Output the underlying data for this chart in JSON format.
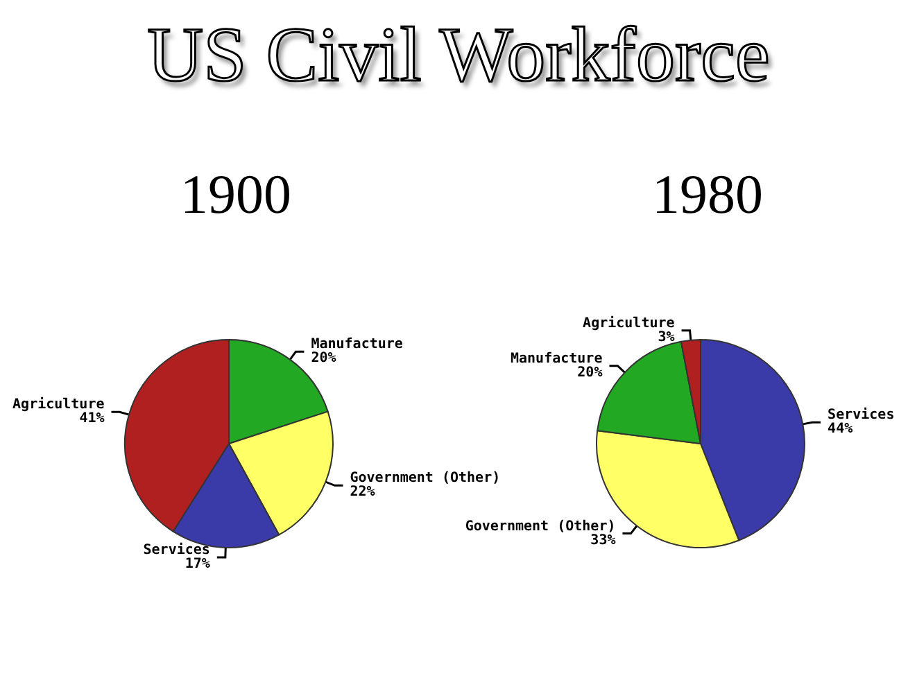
{
  "chart_data": [
    {
      "type": "pie",
      "title": "US Civil Workforce",
      "subtitle": "1900",
      "categories": [
        "Manufacture",
        "Government (Other)",
        "Services",
        "Agriculture"
      ],
      "values": [
        20,
        22,
        17,
        41
      ],
      "value_labels": [
        "20%",
        "22%",
        "17%",
        "41%"
      ],
      "colors": [
        "#22a822",
        "#ffff66",
        "#3a3aa8",
        "#b02020"
      ],
      "legend": false
    },
    {
      "type": "pie",
      "subtitle": "1980",
      "categories": [
        "Services",
        "Government (Other)",
        "Manufacture",
        "Agriculture"
      ],
      "values": [
        44,
        33,
        20,
        3
      ],
      "value_labels": [
        "44%",
        "33%",
        "20%",
        "3%"
      ],
      "colors": [
        "#3a3aa8",
        "#ffff66",
        "#22a822",
        "#b02020"
      ],
      "legend": false
    }
  ]
}
